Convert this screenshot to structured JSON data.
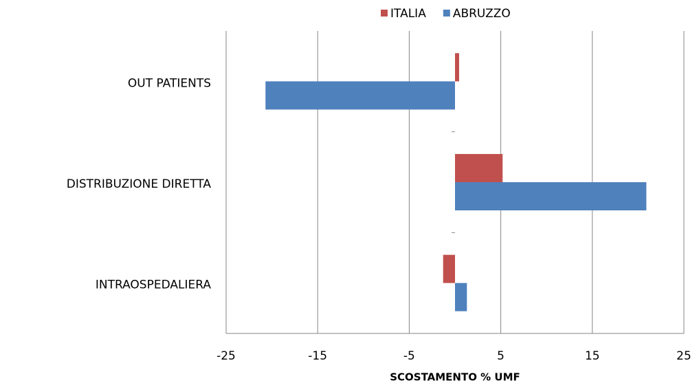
{
  "chart_data": {
    "type": "barh",
    "xlabel": "SCOSTAMENTO % UMF",
    "categories": [
      "OUT PATIENTS",
      "DISTRIBUZIONE DIRETTA",
      "INTRAOSPEDALIERA"
    ],
    "series": [
      {
        "name": "ITALIA",
        "color": "#c0504d",
        "values": [
          0.45,
          5.2,
          -1.3
        ]
      },
      {
        "name": "ABRUZZO",
        "color": "#4f81bd",
        "values": [
          -20.7,
          20.9,
          1.3
        ]
      }
    ],
    "xlim": [
      -25,
      25
    ],
    "xticks": [
      -25,
      -15,
      -5,
      5,
      15,
      25
    ],
    "grid": true,
    "legend": "top"
  }
}
